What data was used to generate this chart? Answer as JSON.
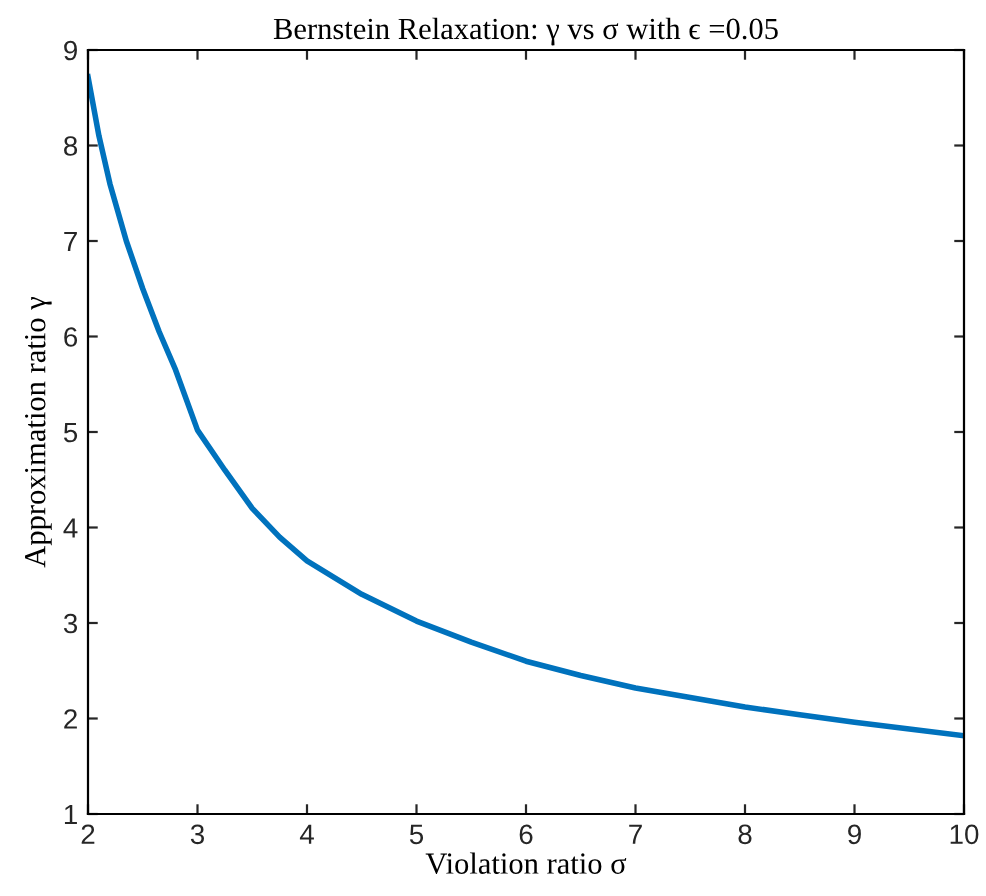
{
  "chart_data": {
    "type": "line",
    "title": "Bernstein Relaxation: γ vs σ with ϵ =0.05",
    "xlabel": "Violation ratio σ",
    "ylabel": "Approximation ratio γ",
    "x": [
      2,
      2.1,
      2.2,
      2.35,
      2.5,
      2.65,
      2.8,
      3,
      3.25,
      3.5,
      3.75,
      4,
      4.5,
      5,
      5.5,
      6,
      6.5,
      7,
      7.5,
      8,
      8.5,
      9,
      9.5,
      10
    ],
    "series": [
      {
        "color": "#0072bd",
        "values": [
          8.72,
          8.1,
          7.6,
          7.0,
          6.5,
          6.05,
          5.65,
          5.02,
          4.6,
          4.2,
          3.9,
          3.65,
          3.3,
          3.02,
          2.8,
          2.6,
          2.45,
          2.32,
          2.22,
          2.12,
          2.04,
          1.96,
          1.89,
          1.82
        ]
      }
    ],
    "xlim": [
      2,
      10
    ],
    "ylim": [
      1,
      9
    ],
    "xticks": [
      2,
      3,
      4,
      5,
      6,
      7,
      8,
      9,
      10
    ],
    "yticks": [
      1,
      2,
      3,
      4,
      5,
      6,
      7,
      8,
      9
    ],
    "grid": false,
    "legend": false,
    "marker": "none",
    "line_style": "solid"
  }
}
